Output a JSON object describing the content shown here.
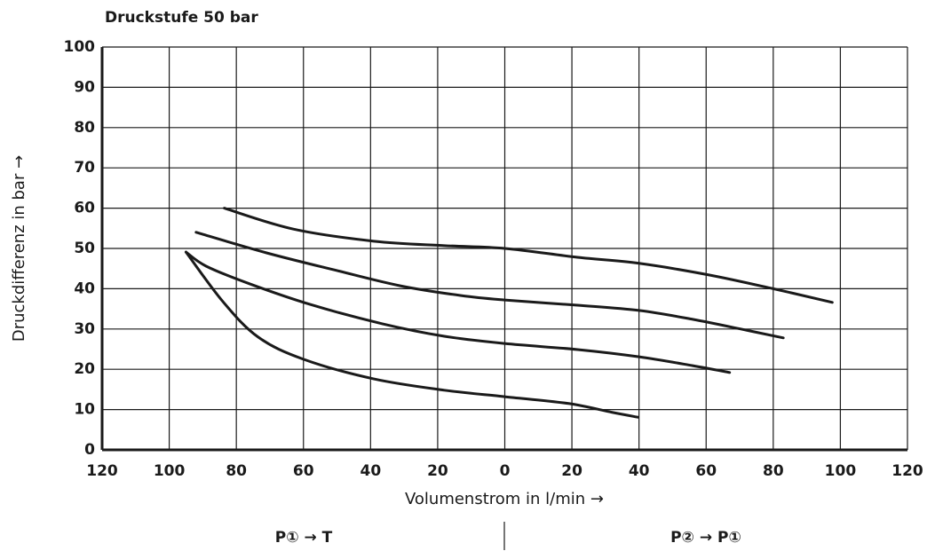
{
  "chart_data": {
    "type": "line",
    "title": "Druckstufe 50 bar",
    "xlabel": "Volumenstrom in l/min →",
    "ylabel": "Druckdifferenz in bar →",
    "annotations": [
      "P① → T",
      "P② → P①"
    ],
    "xlim": [
      -120,
      120
    ],
    "xticks": [
      {
        "value": -120,
        "label": "120"
      },
      {
        "value": -100,
        "label": "100"
      },
      {
        "value": -80,
        "label": "80"
      },
      {
        "value": -60,
        "label": "60"
      },
      {
        "value": -40,
        "label": "40"
      },
      {
        "value": -20,
        "label": "20"
      },
      0,
      20,
      40,
      60,
      80,
      100,
      120
    ],
    "ylim": [
      0,
      100
    ],
    "yticks": [
      0,
      10,
      20,
      30,
      40,
      50,
      60,
      70,
      80,
      90,
      100
    ],
    "grid": true,
    "series": [
      {
        "color": "#1a1a1a",
        "x": [
          -83.6,
          -63,
          -39,
          -18,
          0,
          21.7,
          40,
          61,
          80,
          97.6
        ],
        "values": [
          60,
          54.8,
          51.8,
          50.7,
          50,
          47.8,
          46.3,
          43.4,
          40,
          36.6
        ]
      },
      {
        "color": "#1a1a1a",
        "x": [
          -92,
          -71,
          -50,
          -31,
          -13,
          0,
          21.7,
          40,
          56,
          72,
          83
        ],
        "values": [
          54,
          48.9,
          44.5,
          40.7,
          38.3,
          37.2,
          35.9,
          34.6,
          32.4,
          29.7,
          27.8
        ]
      },
      {
        "color": "#1a1a1a",
        "x": [
          -95,
          -89,
          -76,
          -58,
          -36.5,
          -18,
          0,
          21.7,
          40,
          56,
          67
        ],
        "values": [
          49.1,
          45.6,
          41.2,
          36.1,
          31.3,
          28.2,
          26.4,
          24.9,
          23.1,
          20.9,
          19.2
        ]
      },
      {
        "color": "#1a1a1a",
        "x": [
          -95,
          -84,
          -73.5,
          -60,
          -39,
          -18,
          0,
          19,
          32,
          39.7
        ],
        "values": [
          49.1,
          36.8,
          28,
          22.5,
          17.6,
          14.8,
          13.2,
          11.5,
          9.3,
          8.1
        ]
      }
    ]
  }
}
